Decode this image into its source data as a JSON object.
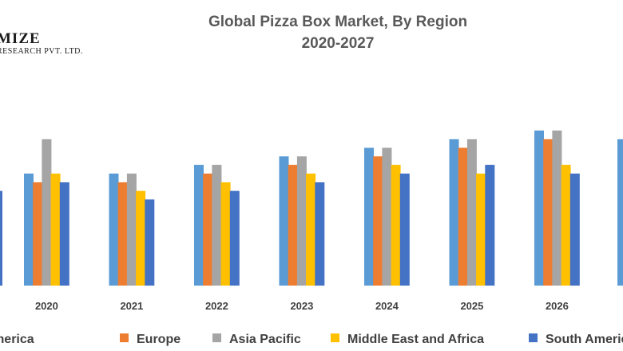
{
  "logo": {
    "main": "MIZE",
    "sub": "RESEARCH PVT. LTD."
  },
  "chart_data": {
    "type": "bar",
    "title": "Global Pizza Box Market, By Region",
    "subtitle": "2020-2027",
    "categories": [
      "2020",
      "2021",
      "2022",
      "2023",
      "2024",
      "2025",
      "2026"
    ],
    "series": [
      {
        "name": "North America",
        "color": "#5B9BD5",
        "values": [
          13,
          13,
          14,
          15,
          16,
          17,
          18
        ]
      },
      {
        "name": "Europe",
        "color": "#ED7D31",
        "values": [
          12,
          12,
          13,
          14,
          15,
          16,
          17
        ]
      },
      {
        "name": "Asia Pacific",
        "color": "#A5A5A5",
        "values": [
          17,
          13,
          14,
          15,
          16,
          17,
          18
        ]
      },
      {
        "name": "Middle East and Africa",
        "color": "#FFC000",
        "values": [
          13,
          11,
          12,
          13,
          14,
          13,
          14
        ]
      },
      {
        "name": "South America",
        "color": "#4472C4",
        "values": [
          12,
          10,
          11,
          12,
          13,
          14,
          13
        ]
      }
    ],
    "partial_visible": {
      "left_bar_value": 11,
      "right_category_first_value": 17
    },
    "xlabel": "",
    "ylabel": "",
    "ylim": [
      0,
      20
    ],
    "grid": false,
    "legend": "bottom"
  }
}
